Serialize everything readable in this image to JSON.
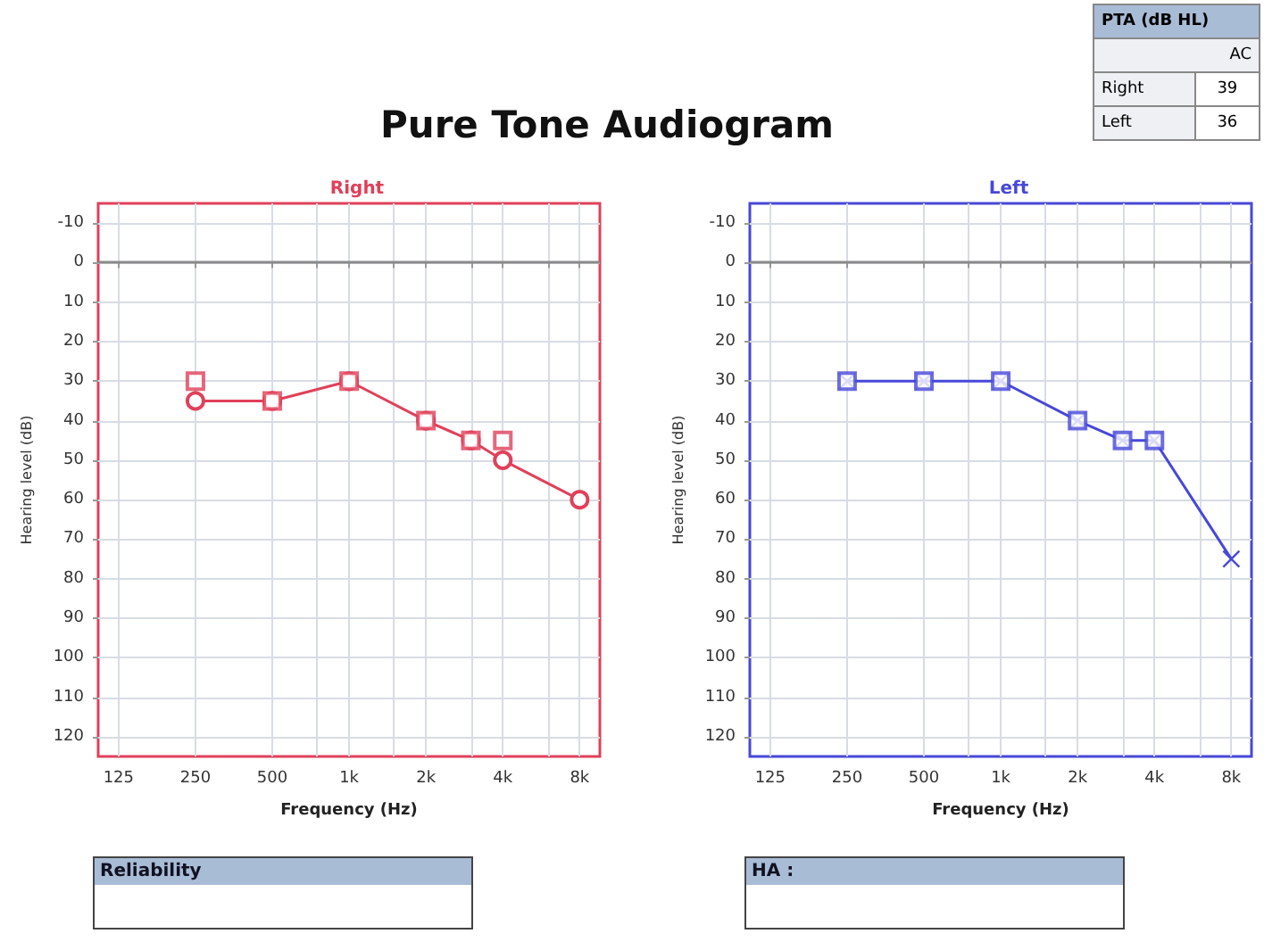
{
  "chart_data": [
    {
      "type": "other",
      "title": "Pure Tone Audiogram"
    },
    {
      "type": "other",
      "title": "PTA (dB HL)",
      "xlabel": "AC",
      "categories": [
        "Right",
        "Left"
      ],
      "values": [
        39,
        36
      ],
      "data_labels": true
    },
    {
      "type": "line",
      "title": "Right",
      "xlabel": "Frequency (Hz)",
      "ylabel": "Hearing level (dB)",
      "annotations": [
        "Reliability"
      ],
      "log": "x",
      "xlim": [
        104,
        9600
      ],
      "xticks": [
        125,
        250,
        500,
        {
          "value": 750,
          "label": null
        },
        {
          "value": 1000,
          "label": "1k"
        },
        {
          "value": 1500,
          "label": null
        },
        {
          "value": 2000,
          "label": "2k"
        },
        {
          "value": 3000,
          "label": null
        },
        {
          "value": 4000,
          "label": "4k"
        },
        {
          "value": 6000,
          "label": null
        },
        {
          "value": 8000,
          "label": "8k"
        }
      ],
      "ylim": [
        125,
        -15
      ],
      "yticks": [
        -10,
        0,
        10,
        20,
        30,
        40,
        50,
        60,
        70,
        80,
        90,
        100,
        110,
        120
      ],
      "grid": true,
      "ref_lines": [
        {
          "axis": "y",
          "value": 0,
          "color": "#8a8a8a"
        }
      ],
      "series": [
        {
          "color": "#e0405a",
          "marker": "circle",
          "line_style": "solid",
          "x": [
            250,
            500,
            1000,
            2000,
            3000,
            4000,
            8000
          ],
          "values": [
            35,
            35,
            30,
            40,
            45,
            50,
            60
          ]
        },
        {
          "type": "scatter",
          "color": "#e0405a",
          "marker": "square",
          "x": [
            250,
            500,
            1000,
            2000,
            3000,
            4000
          ],
          "values": [
            30,
            35,
            30,
            40,
            45,
            45
          ]
        }
      ]
    },
    {
      "type": "line",
      "title": "Left",
      "xlabel": "Frequency (Hz)",
      "ylabel": "Hearing level (dB)",
      "annotations": [
        "HA :"
      ],
      "log": "x",
      "xlim": [
        104,
        9600
      ],
      "xticks": [
        125,
        250,
        500,
        {
          "value": 750,
          "label": null
        },
        {
          "value": 1000,
          "label": "1k"
        },
        {
          "value": 1500,
          "label": null
        },
        {
          "value": 2000,
          "label": "2k"
        },
        {
          "value": 3000,
          "label": null
        },
        {
          "value": 4000,
          "label": "4k"
        },
        {
          "value": 6000,
          "label": null
        },
        {
          "value": 8000,
          "label": "8k"
        }
      ],
      "ylim": [
        125,
        -15
      ],
      "yticks": [
        -10,
        0,
        10,
        20,
        30,
        40,
        50,
        60,
        70,
        80,
        90,
        100,
        110,
        120
      ],
      "grid": true,
      "ref_lines": [
        {
          "axis": "y",
          "value": 0,
          "color": "#8a8a8a"
        }
      ],
      "series": [
        {
          "color": "#4848d8",
          "marker": "cross",
          "line_style": "solid",
          "x": [
            250,
            500,
            1000,
            2000,
            3000,
            4000,
            8000
          ],
          "values": [
            30,
            30,
            30,
            40,
            45,
            45,
            75
          ]
        },
        {
          "type": "scatter",
          "color": "#4848d8",
          "marker": "square",
          "x": [
            250,
            500,
            1000,
            2000,
            3000,
            4000
          ],
          "values": [
            30,
            30,
            30,
            40,
            45,
            45
          ]
        }
      ]
    }
  ]
}
